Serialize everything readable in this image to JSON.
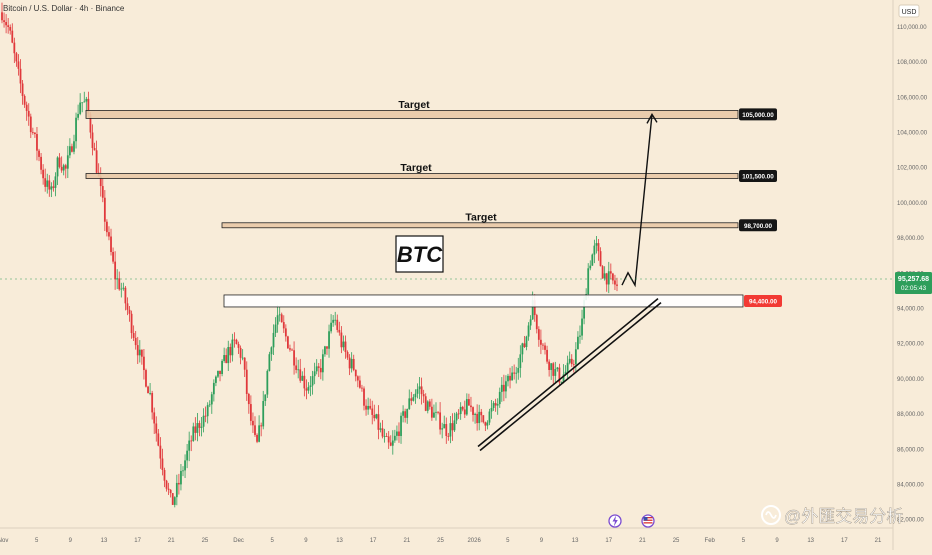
{
  "window": {
    "symbol_line": "Bitcoin / U.S. Dollar · 4h · Binance",
    "currency_button": "USD"
  },
  "badges": {
    "live_price": "95,257.68",
    "countdown": "02:05:43"
  },
  "icons": [
    "lightning-icon",
    "us-flag-icon"
  ],
  "watermark": "@外匯交易分析",
  "colors": {
    "background": "#f8ecd9",
    "up_candle": "#2e9e5b",
    "down_candle": "#e0383b",
    "target_zone_fill": "#e8c9a6",
    "support_label": "#f23a34",
    "current_price_label": "#2e9e5b",
    "label_dark": "#151515"
  },
  "chart_data": {
    "type": "candlestick",
    "title": "Bitcoin / U.S. Dollar · 4h · Binance",
    "overlay_label": "BTC",
    "ylim": [
      81500,
      111500
    ],
    "y_ticks": [
      "82,000.00",
      "84,000.00",
      "86,000.00",
      "88,000.00",
      "90,000.00",
      "92,000.00",
      "94,000.00",
      "96,000.00",
      "98,000.00",
      "100,000.00",
      "102,000.00",
      "104,000.00",
      "106,000.00",
      "108,000.00",
      "110,000.00"
    ],
    "x_ticks": [
      "Nov",
      "5",
      "9",
      "13",
      "17",
      "21",
      "25",
      "Dec",
      "5",
      "9",
      "13",
      "17",
      "21",
      "25",
      "2026",
      "5",
      "9",
      "13",
      "17",
      "21",
      "25",
      "Feb",
      "5",
      "9",
      "13",
      "17",
      "21"
    ],
    "current_price": 95257.68,
    "price_path": [
      [
        0,
        110800
      ],
      [
        1,
        109800
      ],
      [
        2,
        107800
      ],
      [
        3,
        106000
      ],
      [
        4,
        104500
      ],
      [
        5,
        103000
      ],
      [
        6,
        101200
      ],
      [
        7,
        100500
      ],
      [
        8,
        102500
      ],
      [
        9,
        101800
      ],
      [
        10,
        103500
      ],
      [
        11,
        105800
      ],
      [
        12,
        105500
      ],
      [
        13,
        103000
      ],
      [
        14,
        100500
      ],
      [
        15,
        98000
      ],
      [
        16,
        95800
      ],
      [
        17,
        95000
      ],
      [
        18,
        93500
      ],
      [
        19,
        92000
      ],
      [
        20,
        90500
      ],
      [
        21,
        89000
      ],
      [
        22,
        86500
      ],
      [
        23,
        84500
      ],
      [
        24,
        82800
      ],
      [
        25,
        84000
      ],
      [
        26,
        85500
      ],
      [
        27,
        86800
      ],
      [
        28,
        87500
      ],
      [
        29,
        88000
      ],
      [
        30,
        89500
      ],
      [
        31,
        90500
      ],
      [
        32,
        91500
      ],
      [
        33,
        92000
      ],
      [
        34,
        91200
      ],
      [
        35,
        88000
      ],
      [
        36,
        86000
      ],
      [
        37,
        88500
      ],
      [
        38,
        92000
      ],
      [
        39,
        93500
      ],
      [
        40,
        92500
      ],
      [
        41,
        91500
      ],
      [
        42,
        90500
      ],
      [
        43,
        89500
      ],
      [
        44,
        90000
      ],
      [
        45,
        90500
      ],
      [
        46,
        92000
      ],
      [
        47,
        93500
      ],
      [
        48,
        92000
      ],
      [
        49,
        91000
      ],
      [
        50,
        90500
      ],
      [
        51,
        89000
      ],
      [
        52,
        88000
      ],
      [
        53,
        87500
      ],
      [
        54,
        86500
      ],
      [
        55,
        86000
      ],
      [
        56,
        87000
      ],
      [
        57,
        88000
      ],
      [
        58,
        89000
      ],
      [
        59,
        89500
      ],
      [
        60,
        88500
      ],
      [
        61,
        88000
      ],
      [
        62,
        87500
      ],
      [
        63,
        87000
      ],
      [
        64,
        87500
      ],
      [
        65,
        88000
      ],
      [
        66,
        88500
      ],
      [
        67,
        88000
      ],
      [
        68,
        87500
      ],
      [
        69,
        88000
      ],
      [
        70,
        88500
      ],
      [
        71,
        89500
      ],
      [
        72,
        90000
      ],
      [
        73,
        91000
      ],
      [
        74,
        92000
      ],
      [
        75,
        94300
      ],
      [
        76,
        92500
      ],
      [
        77,
        91200
      ],
      [
        78,
        90500
      ],
      [
        79,
        90000
      ],
      [
        80,
        90500
      ],
      [
        81,
        91200
      ],
      [
        82,
        93000
      ],
      [
        83,
        96500
      ],
      [
        84,
        97500
      ],
      [
        85,
        96000
      ],
      [
        86,
        95600
      ],
      [
        87,
        95257
      ]
    ],
    "levels": [
      {
        "label": "Target",
        "value": 105000,
        "tag": "105,000.00"
      },
      {
        "label": "Target",
        "value": 101500,
        "tag": "101,500.00"
      },
      {
        "label": "Target",
        "value": 98700,
        "tag": "98,700.00"
      },
      {
        "label": "",
        "value": 94400,
        "tag": "94,400.00"
      }
    ],
    "trendline": {
      "from": [
        86300,
        88300
      ],
      "to": [
        94700,
        95300
      ]
    },
    "projection": [
      [
        95300,
        95400
      ],
      [
        96000,
        95500
      ],
      [
        95300,
        95600
      ],
      [
        105000,
        95800
      ]
    ],
    "grid": false,
    "legend": "none"
  }
}
